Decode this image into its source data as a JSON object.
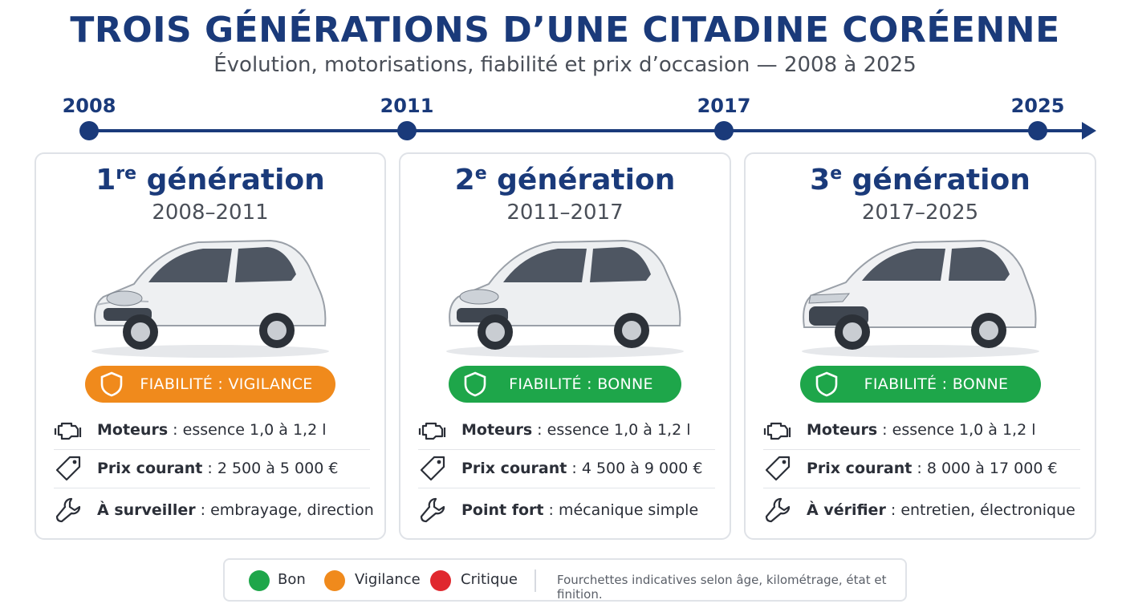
{
  "header": {
    "title": "TROIS GÉNÉRATIONS D’UNE CITADINE CORÉENNE",
    "subtitle": "Évolution, motorisations, fiabilité et prix d’occasion — 2008 à 2025"
  },
  "timeline": {
    "years": [
      "2008",
      "2011",
      "2017",
      "2025"
    ]
  },
  "colors": {
    "navy": "#1a3a7a",
    "vigilance": "#f08a1c",
    "bonne": "#1ea64a",
    "critique": "#e0282e"
  },
  "generations": [
    {
      "title_num": "1",
      "title_sup": "re",
      "title_rest": " génération",
      "years": "2008–2011",
      "reliability": "FIABILITÉ : VIGILANCE",
      "rows": [
        {
          "icon": "engine-icon",
          "label": "Moteurs",
          "sep": " : ",
          "value": "essence 1,0 à 1,2 l"
        },
        {
          "icon": "price-tag-icon",
          "label": "Prix courant",
          "sep": " : ",
          "value": "2 500 à 5 000 €"
        },
        {
          "icon": "wrench-icon",
          "label": "À surveiller",
          "sep": " : ",
          "value": "embrayage, direction"
        }
      ]
    },
    {
      "title_num": "2",
      "title_sup": "e",
      "title_rest": " génération",
      "years": "2011–2017",
      "reliability": "FIABILITÉ : BONNE",
      "rows": [
        {
          "icon": "engine-icon",
          "label": "Moteurs",
          "sep": " : ",
          "value": "essence 1,0 à 1,2 l"
        },
        {
          "icon": "price-tag-icon",
          "label": "Prix courant",
          "sep": " : ",
          "value": "4 500 à 9 000 €"
        },
        {
          "icon": "wrench-icon",
          "label": "Point fort",
          "sep": " : ",
          "value": "mécanique simple"
        }
      ]
    },
    {
      "title_num": "3",
      "title_sup": "e",
      "title_rest": " génération",
      "years": "2017–2025",
      "reliability": "FIABILITÉ : BONNE",
      "rows": [
        {
          "icon": "engine-icon",
          "label": "Moteurs",
          "sep": " : ",
          "value": "essence 1,0 à 1,2 l"
        },
        {
          "icon": "price-tag-icon",
          "label": "Prix courant",
          "sep": " : ",
          "value": "8 000 à 17 000 €"
        },
        {
          "icon": "wrench-icon",
          "label": "À vérifier",
          "sep": " : ",
          "value": "entretien, électronique"
        }
      ]
    }
  ],
  "legend": {
    "items": [
      "Bon",
      "Vigilance",
      "Critique"
    ],
    "note": "Fourchettes indicatives selon âge, kilométrage, état et finition."
  }
}
